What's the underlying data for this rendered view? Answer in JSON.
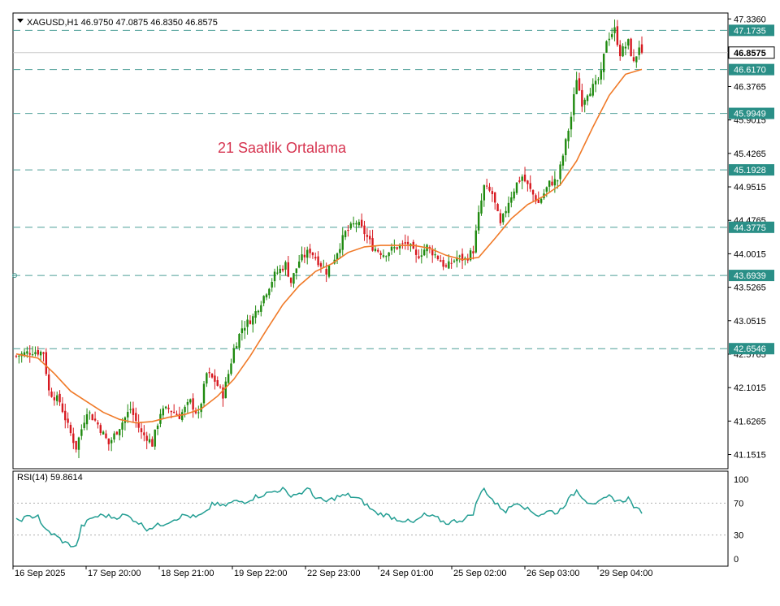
{
  "chart_data": {
    "type": "candlestick",
    "header": {
      "symbol": "XAGUSD,H1",
      "open": "46.9750",
      "high": "47.0875",
      "low": "46.8350",
      "close": "46.8575"
    },
    "annotation": "21 Saatlik Ortalama",
    "price_axis": {
      "ylim": [
        40.95,
        47.42
      ],
      "ticks": [
        "47.3360",
        "46.3765",
        "45.9015",
        "45.4265",
        "44.9515",
        "44.4765",
        "44.0015",
        "43.5265",
        "43.0515",
        "42.5765",
        "42.1015",
        "41.6265",
        "41.1515"
      ]
    },
    "price_levels": [
      {
        "label": "47.1735",
        "value": 47.1735
      },
      {
        "label": "46.6170",
        "value": 46.617
      },
      {
        "label": "45.9949",
        "value": 45.9949
      },
      {
        "label": "45.1928",
        "value": 45.1928
      },
      {
        "label": "44.3775",
        "value": 44.3775
      },
      {
        "label": "43.6939",
        "value": 43.6939
      },
      {
        "label": "42.6546",
        "value": 42.6546
      }
    ],
    "current_price": {
      "label": "46.8575",
      "value": 46.8575
    },
    "time_labels": [
      "16 Sep 2025",
      "17 Sep 20:00",
      "18 Sep 21:00",
      "19 Sep 22:00",
      "22 Sep 23:00",
      "24 Sep 01:00",
      "25 Sep 02:00",
      "26 Sep 03:00",
      "29 Sep 04:00"
    ],
    "close_path": [
      [
        0,
        42.55
      ],
      [
        6,
        42.62
      ],
      [
        10,
        42.6
      ],
      [
        12,
        42.05
      ],
      [
        16,
        41.9
      ],
      [
        19,
        41.55
      ],
      [
        22,
        41.25
      ],
      [
        26,
        41.78
      ],
      [
        30,
        41.58
      ],
      [
        34,
        41.3
      ],
      [
        38,
        41.55
      ],
      [
        42,
        41.8
      ],
      [
        46,
        41.45
      ],
      [
        48,
        41.4
      ],
      [
        50,
        41.3
      ],
      [
        53,
        41.75
      ],
      [
        56,
        41.8
      ],
      [
        60,
        41.7
      ],
      [
        64,
        41.9
      ],
      [
        67,
        41.7
      ],
      [
        70,
        42.3
      ],
      [
        73,
        42.2
      ],
      [
        76,
        42.0
      ],
      [
        78,
        42.3
      ],
      [
        80,
        42.65
      ],
      [
        83,
        42.95
      ],
      [
        87,
        43.1
      ],
      [
        91,
        43.4
      ],
      [
        95,
        43.7
      ],
      [
        99,
        43.85
      ],
      [
        101,
        43.6
      ],
      [
        104,
        43.9
      ],
      [
        108,
        44.05
      ],
      [
        111,
        43.9
      ],
      [
        114,
        43.75
      ],
      [
        117,
        43.95
      ],
      [
        121,
        44.3
      ],
      [
        125,
        44.45
      ],
      [
        128,
        44.3
      ],
      [
        131,
        44.1
      ],
      [
        135,
        44.0
      ],
      [
        140,
        44.1
      ],
      [
        144,
        44.15
      ],
      [
        147,
        43.95
      ],
      [
        151,
        44.1
      ],
      [
        155,
        43.95
      ],
      [
        158,
        43.8
      ],
      [
        162,
        43.95
      ],
      [
        165,
        43.92
      ],
      [
        168,
        44.05
      ],
      [
        170,
        44.55
      ],
      [
        172,
        44.95
      ],
      [
        175,
        44.85
      ],
      [
        178,
        44.4
      ],
      [
        181,
        44.75
      ],
      [
        184,
        45.0
      ],
      [
        186,
        45.1
      ],
      [
        189,
        44.9
      ],
      [
        192,
        44.72
      ],
      [
        196,
        45.0
      ],
      [
        199,
        45.05
      ],
      [
        201,
        45.4
      ],
      [
        204,
        45.95
      ],
      [
        206,
        46.5
      ],
      [
        208,
        46.15
      ],
      [
        210,
        46.3
      ],
      [
        213,
        46.4
      ],
      [
        215,
        46.55
      ],
      [
        217,
        47.05
      ],
      [
        220,
        47.18
      ],
      [
        222,
        46.85
      ],
      [
        225,
        47.0
      ],
      [
        227,
        46.7
      ],
      [
        229,
        46.9575
      ],
      [
        230,
        46.8575
      ]
    ],
    "ma_path": [
      [
        0,
        42.58
      ],
      [
        8,
        42.52
      ],
      [
        14,
        42.3
      ],
      [
        20,
        42.05
      ],
      [
        26,
        41.9
      ],
      [
        32,
        41.75
      ],
      [
        38,
        41.65
      ],
      [
        44,
        41.6
      ],
      [
        50,
        41.62
      ],
      [
        56,
        41.68
      ],
      [
        62,
        41.72
      ],
      [
        68,
        41.8
      ],
      [
        74,
        41.98
      ],
      [
        80,
        42.22
      ],
      [
        86,
        42.55
      ],
      [
        92,
        42.92
      ],
      [
        98,
        43.28
      ],
      [
        104,
        43.55
      ],
      [
        110,
        43.75
      ],
      [
        116,
        43.86
      ],
      [
        122,
        44.02
      ],
      [
        128,
        44.1
      ],
      [
        134,
        44.12
      ],
      [
        140,
        44.12
      ],
      [
        146,
        44.12
      ],
      [
        152,
        44.08
      ],
      [
        158,
        43.98
      ],
      [
        164,
        43.92
      ],
      [
        170,
        43.95
      ],
      [
        176,
        44.22
      ],
      [
        182,
        44.5
      ],
      [
        188,
        44.7
      ],
      [
        194,
        44.82
      ],
      [
        200,
        44.98
      ],
      [
        206,
        45.32
      ],
      [
        212,
        45.8
      ],
      [
        218,
        46.25
      ],
      [
        224,
        46.55
      ],
      [
        230,
        46.62
      ]
    ],
    "rsi": {
      "label": "RSI(14) 59.8614",
      "ticks": [
        "100",
        "70",
        "30",
        "0"
      ],
      "levels": [
        70,
        30
      ],
      "values": [
        [
          0,
          48
        ],
        [
          4,
          52
        ],
        [
          8,
          55
        ],
        [
          10,
          38
        ],
        [
          14,
          30
        ],
        [
          18,
          20
        ],
        [
          22,
          15
        ],
        [
          24,
          40
        ],
        [
          28,
          52
        ],
        [
          32,
          55
        ],
        [
          36,
          52
        ],
        [
          40,
          55
        ],
        [
          44,
          48
        ],
        [
          48,
          38
        ],
        [
          50,
          40
        ],
        [
          54,
          44
        ],
        [
          58,
          50
        ],
        [
          62,
          55
        ],
        [
          66,
          52
        ],
        [
          70,
          58
        ],
        [
          72,
          70
        ],
        [
          76,
          66
        ],
        [
          80,
          72
        ],
        [
          84,
          72
        ],
        [
          88,
          78
        ],
        [
          92,
          82
        ],
        [
          96,
          86
        ],
        [
          98,
          88
        ],
        [
          100,
          80
        ],
        [
          104,
          82
        ],
        [
          108,
          88
        ],
        [
          110,
          76
        ],
        [
          114,
          72
        ],
        [
          118,
          78
        ],
        [
          122,
          80
        ],
        [
          126,
          75
        ],
        [
          128,
          70
        ],
        [
          132,
          58
        ],
        [
          136,
          55
        ],
        [
          140,
          50
        ],
        [
          143,
          48
        ],
        [
          146,
          45
        ],
        [
          150,
          55
        ],
        [
          154,
          52
        ],
        [
          158,
          45
        ],
        [
          162,
          48
        ],
        [
          165,
          50
        ],
        [
          168,
          58
        ],
        [
          170,
          78
        ],
        [
          172,
          88
        ],
        [
          176,
          70
        ],
        [
          180,
          60
        ],
        [
          184,
          72
        ],
        [
          186,
          68
        ],
        [
          188,
          62
        ],
        [
          192,
          55
        ],
        [
          196,
          60
        ],
        [
          199,
          58
        ],
        [
          201,
          66
        ],
        [
          204,
          78
        ],
        [
          206,
          86
        ],
        [
          210,
          72
        ],
        [
          214,
          70
        ],
        [
          218,
          78
        ],
        [
          222,
          72
        ],
        [
          225,
          76
        ],
        [
          228,
          62
        ],
        [
          230,
          60
        ]
      ]
    },
    "colors": {
      "up": "#1f8a0f",
      "down": "#d71920",
      "ma": "#f07a28",
      "rsi": "#239e93",
      "level": "#4c9f97",
      "label_bg": "#2a8f87",
      "annotation": "#d6334f"
    }
  }
}
